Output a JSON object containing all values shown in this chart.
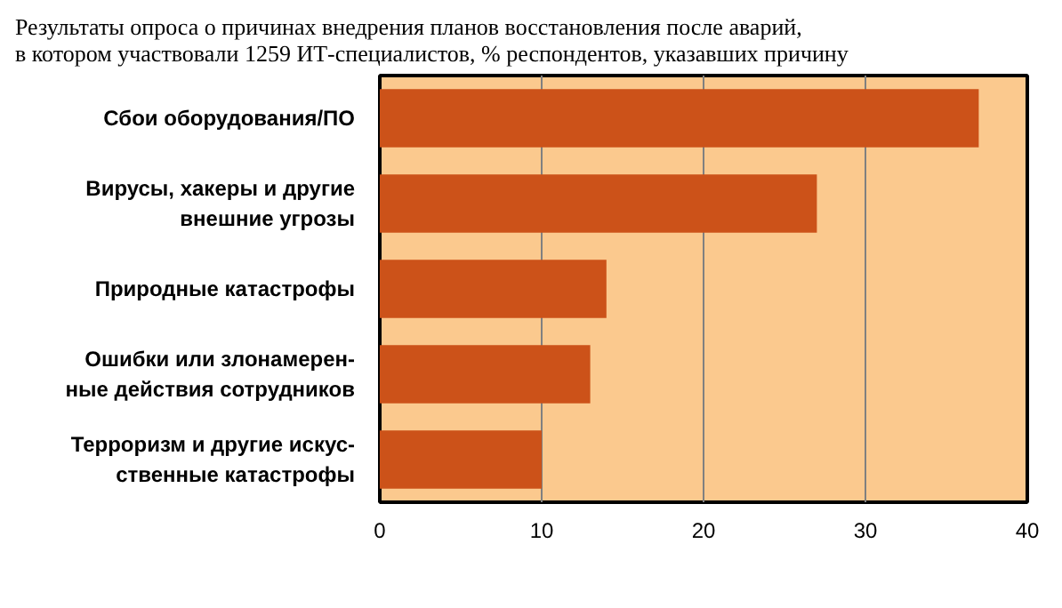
{
  "chart_data": {
    "type": "bar",
    "orientation": "horizontal",
    "title": "Результаты опроса о причинах внедрения планов восстановления после аварий,\nв котором участвовали 1259 ИТ-специалистов, % респондентов, указавших причину",
    "categories": [
      "Сбои оборудования/ПО",
      "Вирусы, хакеры и другие\nвнешние угрозы",
      "Природные катастрофы",
      "Ошибки или злонамерен-\nные действия сотрудников",
      "Терроризм и другие искус-\nственные катастрофы"
    ],
    "values": [
      37,
      27,
      14,
      13,
      10
    ],
    "color": "#cc5219",
    "xlim": [
      0,
      40
    ],
    "xticks": [
      0,
      10,
      20,
      30,
      40
    ],
    "grid": "x"
  }
}
